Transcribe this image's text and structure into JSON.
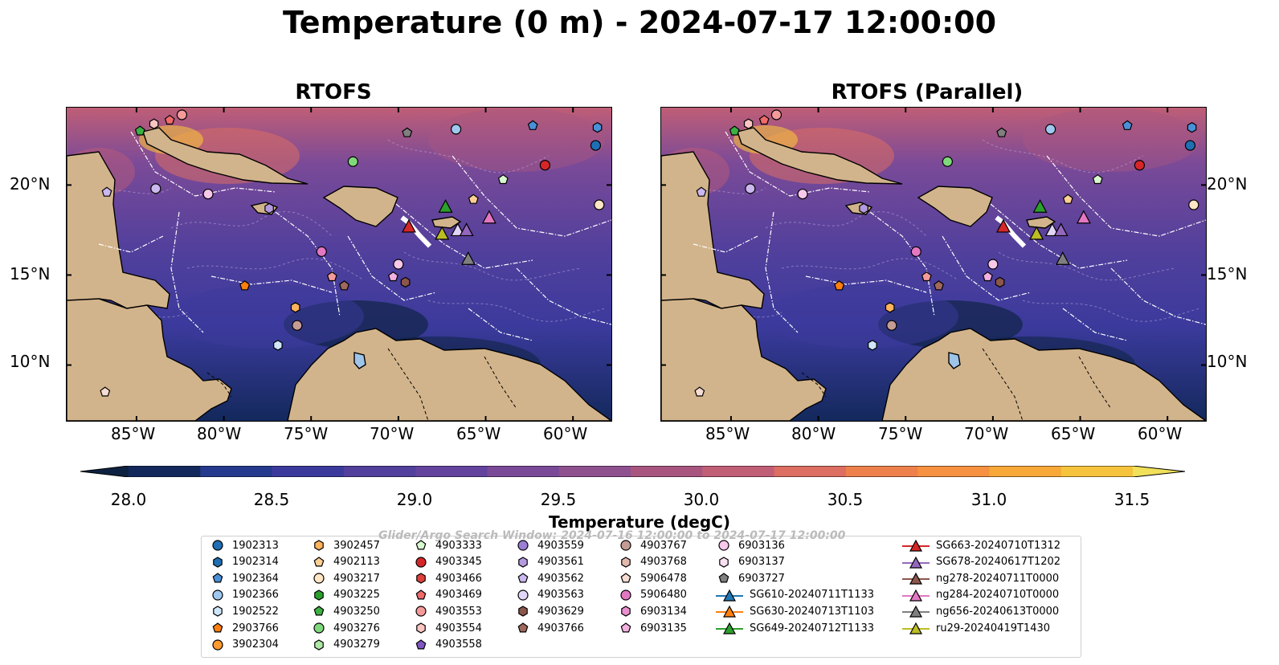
{
  "title": "Temperature (0 m) - 2024-07-17 12:00:00",
  "panels": [
    {
      "title": "RTOFS"
    },
    {
      "title": "RTOFS (Parallel)"
    }
  ],
  "axes": {
    "lon_ticks": [
      "85°W",
      "80°W",
      "75°W",
      "70°W",
      "65°W",
      "60°W"
    ],
    "lat_ticks": [
      "20°N",
      "15°N",
      "10°N"
    ]
  },
  "colorbar": {
    "label": "Temperature (degC)",
    "ticks": [
      "28.0",
      "28.5",
      "29.0",
      "29.5",
      "30.0",
      "30.5",
      "31.0",
      "31.5"
    ],
    "range": [
      28.0,
      31.5
    ],
    "colors": [
      "#0d2240",
      "#13295c",
      "#253a8c",
      "#3b3a9c",
      "#52409c",
      "#63439e",
      "#7a4a98",
      "#8f5090",
      "#a85680",
      "#c05e76",
      "#dc6e62",
      "#ee804c",
      "#f59140",
      "#f8a838",
      "#f6c33c",
      "#f0e05a"
    ]
  },
  "watermark": "Glider/Argo Search Window: 2024-07-16 12:00:00 to 2024-07-17 12:00:00",
  "legend": {
    "columns": [
      [
        {
          "label": "1902313",
          "marker": "circle",
          "color": "#1f6fb4"
        },
        {
          "label": "1902314",
          "marker": "hexagon",
          "color": "#1f6fb4"
        },
        {
          "label": "1902364",
          "marker": "pentagon",
          "color": "#4a90d9"
        },
        {
          "label": "1902366",
          "marker": "circle",
          "color": "#9ec8ef"
        },
        {
          "label": "1902522",
          "marker": "hexagon",
          "color": "#cfe6fb"
        },
        {
          "label": "2903766",
          "marker": "pentagon",
          "color": "#ff7f0e"
        },
        {
          "label": "3902304",
          "marker": "circle",
          "color": "#ff9a2e"
        }
      ],
      [
        {
          "label": "3902457",
          "marker": "hexagon",
          "color": "#ffb35c"
        },
        {
          "label": "4902113",
          "marker": "pentagon",
          "color": "#ffcf94"
        },
        {
          "label": "4903217",
          "marker": "circle",
          "color": "#ffe6c4"
        },
        {
          "label": "4903225",
          "marker": "hexagon",
          "color": "#2ca02c"
        },
        {
          "label": "4903250",
          "marker": "pentagon",
          "color": "#3cb043"
        },
        {
          "label": "4903276",
          "marker": "circle",
          "color": "#7fd97a"
        },
        {
          "label": "4903279",
          "marker": "hexagon",
          "color": "#aee8a5"
        }
      ],
      [
        {
          "label": "4903333",
          "marker": "pentagon",
          "color": "#d8f8cf"
        },
        {
          "label": "4903345",
          "marker": "circle",
          "color": "#d62728"
        },
        {
          "label": "4903466",
          "marker": "hexagon",
          "color": "#e0403c"
        },
        {
          "label": "4903469",
          "marker": "pentagon",
          "color": "#ef6a6a"
        },
        {
          "label": "4903553",
          "marker": "circle",
          "color": "#f59a9a"
        },
        {
          "label": "4903554",
          "marker": "hexagon",
          "color": "#fbc6c2"
        },
        {
          "label": "4903558",
          "marker": "pentagon",
          "color": "#7e57c2"
        }
      ],
      [
        {
          "label": "4903559",
          "marker": "circle",
          "color": "#9b7fd4"
        },
        {
          "label": "4903561",
          "marker": "hexagon",
          "color": "#b49be0"
        },
        {
          "label": "4903562",
          "marker": "pentagon",
          "color": "#cbb8ee"
        },
        {
          "label": "4903563",
          "marker": "circle",
          "color": "#e2d6f8"
        },
        {
          "label": "4903629",
          "marker": "hexagon",
          "color": "#8c564b"
        },
        {
          "label": "4903766",
          "marker": "pentagon",
          "color": "#a0695c"
        }
      ],
      [
        {
          "label": "4903767",
          "marker": "circle",
          "color": "#c49c94"
        },
        {
          "label": "4903768",
          "marker": "hexagon",
          "color": "#e3b9ae"
        },
        {
          "label": "5906478",
          "marker": "pentagon",
          "color": "#f6dcd3"
        },
        {
          "label": "5906480",
          "marker": "circle",
          "color": "#e377c2"
        },
        {
          "label": "6903134",
          "marker": "hexagon",
          "color": "#ea8fd0"
        },
        {
          "label": "6903135",
          "marker": "pentagon",
          "color": "#f3b0e0"
        }
      ],
      [
        {
          "label": "6903136",
          "marker": "circle",
          "color": "#f7c8ea"
        },
        {
          "label": "6903137",
          "marker": "hexagon",
          "color": "#fbe0f3"
        },
        {
          "label": "6903727",
          "marker": "pentagon",
          "color": "#7f7f7f"
        },
        {
          "label": "SG610-20240711T1133",
          "marker": "triangle-line",
          "color": "#1f77b4"
        },
        {
          "label": "SG630-20240713T1103",
          "marker": "triangle-line",
          "color": "#ff7f0e"
        },
        {
          "label": "SG649-20240712T1133",
          "marker": "triangle-line",
          "color": "#2ca02c"
        }
      ],
      [
        {
          "label": "SG663-20240710T1312",
          "marker": "triangle-line",
          "color": "#d62728"
        },
        {
          "label": "SG678-20240617T1202",
          "marker": "triangle-line",
          "color": "#9467bd"
        },
        {
          "label": "ng278-20240711T0000",
          "marker": "triangle-line",
          "color": "#8c564b"
        },
        {
          "label": "ng284-20240710T0000",
          "marker": "triangle-line",
          "color": "#e377c2"
        },
        {
          "label": "ng656-20240613T0000",
          "marker": "triangle-line",
          "color": "#7f7f7f"
        },
        {
          "label": "ru29-20240419T1430",
          "marker": "triangle-line",
          "color": "#bcbd22"
        }
      ]
    ]
  }
}
